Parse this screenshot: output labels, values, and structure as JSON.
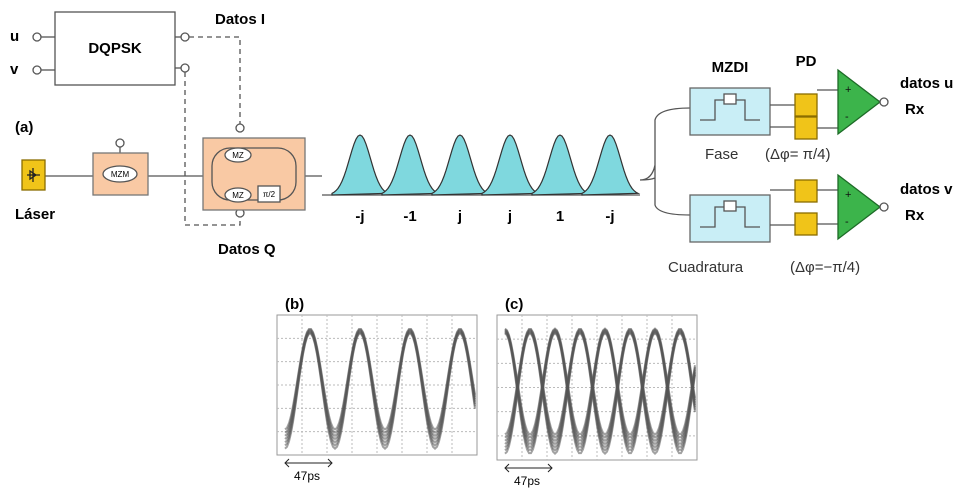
{
  "transmitter": {
    "inputs": [
      "u",
      "v"
    ],
    "encoder": "DQPSK",
    "datos_i": "Datos I",
    "datos_q": "Datos Q",
    "panel": "(a)",
    "laser": "Láser",
    "modulator": "MZM",
    "iq_arms": [
      "MZ",
      "MZ"
    ],
    "iq_phase": "π/2"
  },
  "symbols": [
    "-j",
    "-1",
    "j",
    "j",
    "1",
    "-j"
  ],
  "receiver": {
    "interferometer": "MZDI",
    "detector": "PD",
    "amplifier_signs": [
      "+",
      "-"
    ],
    "branches": [
      {
        "name": "Fase",
        "phase": "(Δφ= π/4)",
        "output": "datos u",
        "rx": "Rx"
      },
      {
        "name": "Cuadratura",
        "phase": "(Δφ=−π/4)",
        "output": "datos v",
        "rx": "Rx"
      }
    ]
  },
  "eye_diagrams": [
    {
      "label": "(b)",
      "scale": "47ps"
    },
    {
      "label": "(c)",
      "scale": "47ps"
    }
  ]
}
